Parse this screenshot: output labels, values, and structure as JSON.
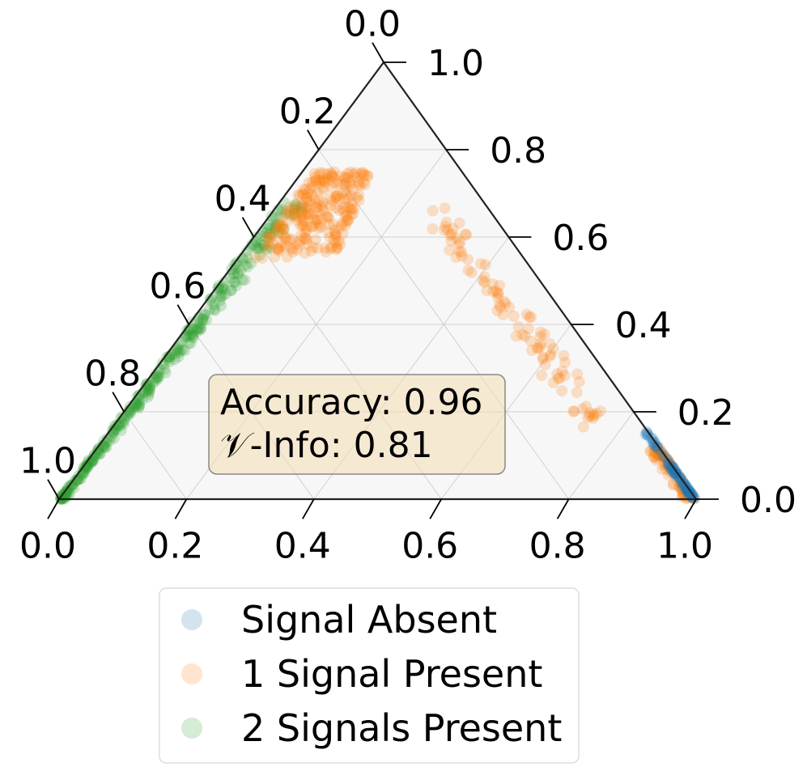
{
  "chart_data": {
    "type": "scatter",
    "projection": "ternary",
    "axes": {
      "bottom": {
        "ticks": [
          "0.0",
          "0.2",
          "0.4",
          "0.6",
          "0.8",
          "1.0"
        ]
      },
      "left": {
        "ticks": [
          "0.0",
          "0.2",
          "0.4",
          "0.6",
          "0.8",
          "1.0"
        ]
      },
      "right": {
        "ticks": [
          "0.0",
          "0.2",
          "0.4",
          "0.6",
          "0.8",
          "1.0"
        ]
      }
    },
    "grid": true,
    "legend": {
      "placement": "bottom-center"
    },
    "annotation": {
      "line1": "Accuracy: 0.96",
      "line2": "𝒱-Info: 0.81"
    },
    "series": [
      {
        "name": "Signal Absent",
        "color": "#1f77b4",
        "point_count": 80,
        "points_fraction_along_right_edge": "clustered near right vertex, (0.94..1.0, 0.0..0.16)"
      },
      {
        "name": "1 Signal Present",
        "color": "#ff7f0e",
        "point_count": 400,
        "region": "arc from left edge (~0.55 down) up to apex region (~0.25) and down the right edge"
      },
      {
        "name": "2 Signals Present",
        "color": "#2ca02c",
        "point_count": 300,
        "region": "dense along left edge from bottom-left vertex to ~0.3"
      }
    ]
  },
  "legend": {
    "items": [
      {
        "label": "Signal Absent",
        "color": "#1f77b4"
      },
      {
        "label": "1 Signal Present",
        "color": "#ff7f0e"
      },
      {
        "label": "2 Signals Present",
        "color": "#2ca02c"
      }
    ]
  }
}
